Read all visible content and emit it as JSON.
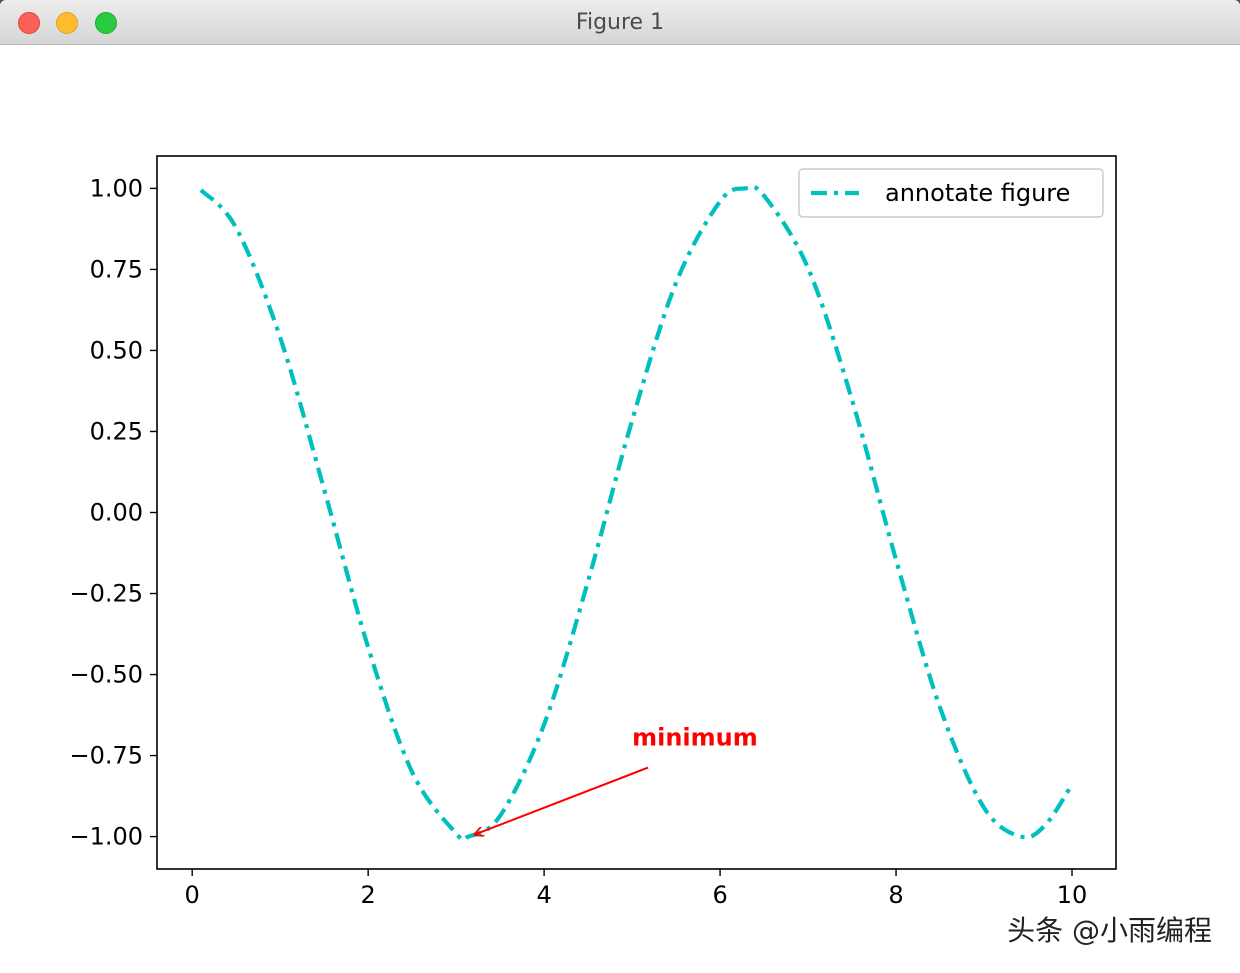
{
  "window": {
    "title": "Figure 1"
  },
  "chart_data": {
    "type": "line",
    "title": "",
    "xlabel": "",
    "ylabel": "",
    "xlim": [
      -0.4,
      10.5
    ],
    "ylim": [
      -1.1,
      1.1
    ],
    "xticks": [
      0,
      2,
      4,
      6,
      8,
      10
    ],
    "xtick_labels": [
      "0",
      "2",
      "4",
      "6",
      "8",
      "10"
    ],
    "yticks": [
      1.0,
      0.75,
      0.5,
      0.25,
      0.0,
      -0.25,
      -0.5,
      -0.75,
      -1.0
    ],
    "ytick_labels": [
      "1.00",
      "0.75",
      "0.50",
      "0.25",
      "0.00",
      "−0.25",
      "−0.50",
      "−0.75",
      "−1.00"
    ],
    "grid": false,
    "legend_position": "top-right",
    "series": [
      {
        "name": "annotate figure",
        "color": "#00bfbf",
        "linestyle": "dashdot",
        "x": [
          0.1,
          0.5,
          1.0,
          1.5,
          2.0,
          2.5,
          3.0,
          3.1416,
          3.5,
          4.0,
          4.5,
          5.0,
          5.5,
          6.0,
          6.2832,
          6.5,
          7.0,
          7.5,
          8.0,
          8.5,
          9.0,
          9.4248,
          9.7,
          10.0
        ],
        "y": [
          0.995,
          0.878,
          0.54,
          0.071,
          -0.416,
          -0.801,
          -0.99,
          -1.0,
          -0.936,
          -0.654,
          -0.211,
          0.284,
          0.709,
          0.96,
          1.0,
          0.977,
          0.754,
          0.347,
          -0.146,
          -0.602,
          -0.911,
          -1.0,
          -0.963,
          -0.839
        ]
      }
    ],
    "annotations": [
      {
        "text": "minimum",
        "xy": [
          3.1416,
          -1.0
        ],
        "xytext": [
          5.0,
          -0.75
        ],
        "color": "#ff0000",
        "weight": "bold"
      }
    ]
  },
  "watermark": "头条 @小雨编程"
}
